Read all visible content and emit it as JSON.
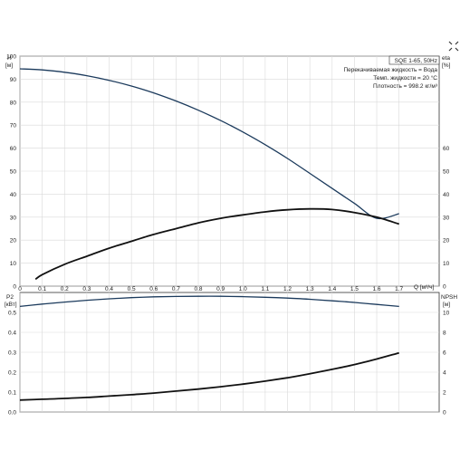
{
  "chart_data": [
    {
      "type": "line",
      "panel": "upper",
      "title": "SQE 1-65, 50Hz",
      "info_lines": [
        "Перекачиваемая жидкость = Вода",
        "Темп. жидкости = 20 °C",
        "Плотность = 998.2 кг/м³"
      ],
      "xlabel": "Q [м³/ч]",
      "xlabel_unit": "Q [м³/ч]",
      "xlim": [
        0,
        1.88
      ],
      "x_ticks": [
        0,
        0.1,
        0.2,
        0.3,
        0.4,
        0.5,
        0.6,
        0.7,
        0.8,
        0.9,
        1.0,
        1.1,
        1.2,
        1.3,
        1.4,
        1.5,
        1.6,
        1.7
      ],
      "x_tick_labels": [
        "0",
        "0.1",
        "0.2",
        "0.3",
        "0.4",
        "0.5",
        "0.6",
        "0.7",
        "0.8",
        "0.9",
        "1.0",
        "1.1",
        "1.2",
        "1.3",
        "1.4",
        "1.5",
        "1.6",
        "1.7"
      ],
      "y_left": {
        "label": "H",
        "unit": "[м]",
        "lim": [
          0,
          100
        ],
        "ticks": [
          0,
          10,
          20,
          30,
          40,
          50,
          60,
          70,
          80,
          90,
          100
        ]
      },
      "y_right": {
        "label": "eta",
        "unit": "[%]",
        "lim": [
          0,
          100
        ],
        "ticks": [
          0,
          10,
          20,
          30,
          40,
          50,
          60
        ]
      },
      "grid": true,
      "series": [
        {
          "axis": "left",
          "color": "#1b3a5c",
          "x": [
            0,
            0.1,
            0.2,
            0.3,
            0.4,
            0.5,
            0.6,
            0.7,
            0.8,
            0.9,
            1.0,
            1.1,
            1.2,
            1.3,
            1.4,
            1.5,
            1.6,
            1.7
          ],
          "values": [
            94.5,
            94,
            93,
            91.5,
            89.5,
            87,
            84,
            80.5,
            76.5,
            72,
            67,
            61.5,
            55.5,
            49,
            42.5,
            36,
            29.5,
            31.5
          ]
        },
        {
          "axis": "right",
          "color": "#111111",
          "x": [
            0.07,
            0.1,
            0.2,
            0.3,
            0.4,
            0.5,
            0.6,
            0.7,
            0.8,
            0.9,
            1.0,
            1.1,
            1.2,
            1.3,
            1.4,
            1.5,
            1.6,
            1.7
          ],
          "values": [
            3,
            5,
            9.5,
            13,
            16.5,
            19.5,
            22.5,
            25,
            27.5,
            29.5,
            31,
            32.3,
            33.2,
            33.6,
            33.3,
            32,
            30,
            27
          ]
        }
      ]
    },
    {
      "type": "line",
      "panel": "lower",
      "xlim": [
        0,
        1.88
      ],
      "y_left": {
        "label": "P2",
        "unit": "[кВт]",
        "lim": [
          0,
          0.6
        ],
        "ticks": [
          0,
          0.1,
          0.2,
          0.3,
          0.4,
          0.5
        ],
        "tick_labels": [
          "0.0",
          "0.1",
          "0.2",
          "0.3",
          "0.4",
          "0.5"
        ]
      },
      "y_right": {
        "label": "NPSH",
        "unit": "[м]",
        "lim": [
          0,
          12
        ],
        "ticks": [
          0,
          2,
          4,
          6,
          8,
          10
        ]
      },
      "grid": true,
      "series": [
        {
          "axis": "left",
          "color": "#1b3a5c",
          "x": [
            0,
            0.1,
            0.2,
            0.3,
            0.4,
            0.5,
            0.6,
            0.7,
            0.8,
            0.9,
            1.0,
            1.1,
            1.2,
            1.3,
            1.4,
            1.5,
            1.6,
            1.7
          ],
          "values": [
            0.53,
            0.542,
            0.552,
            0.561,
            0.568,
            0.574,
            0.578,
            0.58,
            0.581,
            0.581,
            0.579,
            0.576,
            0.572,
            0.566,
            0.558,
            0.55,
            0.54,
            0.53
          ]
        },
        {
          "axis": "left",
          "color": "#111111",
          "x": [
            0,
            0.1,
            0.2,
            0.3,
            0.4,
            0.5,
            0.6,
            0.7,
            0.8,
            0.9,
            1.0,
            1.1,
            1.2,
            1.3,
            1.4,
            1.5,
            1.6,
            1.7
          ],
          "values": [
            0.06,
            0.064,
            0.068,
            0.073,
            0.08,
            0.087,
            0.095,
            0.105,
            0.115,
            0.127,
            0.14,
            0.155,
            0.172,
            0.192,
            0.214,
            0.238,
            0.266,
            0.297
          ]
        }
      ]
    }
  ]
}
